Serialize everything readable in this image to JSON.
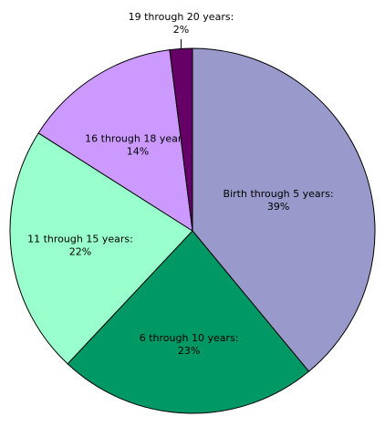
{
  "chart_data": {
    "type": "pie",
    "title": "",
    "slices": [
      {
        "label": "Birth through 5 years:",
        "value": 39,
        "value_label": "39%",
        "color": "#9999cc"
      },
      {
        "label": "6 through 10 years:",
        "value": 23,
        "value_label": "23%",
        "color": "#009966"
      },
      {
        "label": "11 through 15 years:",
        "value": 22,
        "value_label": "22%",
        "color": "#99ffcc"
      },
      {
        "label": "16 through 18 years:",
        "value": 14,
        "value_label": "14%",
        "color": "#cc99ff"
      },
      {
        "label": "19 through 20 years:",
        "value": 2,
        "value_label": "2%",
        "color": "#660066"
      }
    ],
    "start_position": "12 o'clock",
    "direction": "clockwise",
    "legend": "none",
    "labels": "inside slices; smallest slice labelled outside with leader line"
  }
}
